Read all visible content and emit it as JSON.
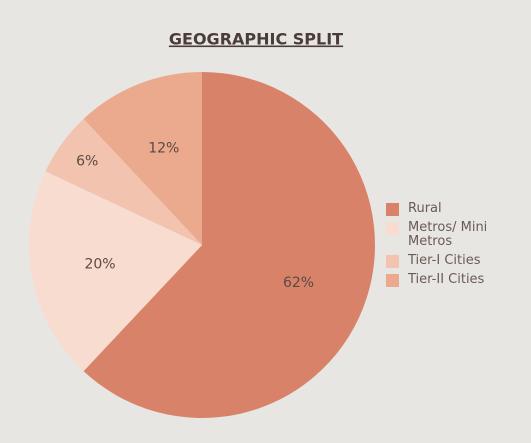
{
  "chart_data": {
    "type": "pie",
    "title": "GEOGRAPHIC SPLIT",
    "categories": [
      "Rural",
      "Metros/ Mini Metros",
      "Tier-I Cities",
      "Tier-II Cities"
    ],
    "values": [
      62,
      20,
      6,
      12
    ],
    "value_labels": [
      "62%",
      "20%",
      "6%",
      "12%"
    ],
    "colors": [
      "#d9826a",
      "#f8dccf",
      "#f2c4b0",
      "#eba98e"
    ],
    "legend": "right"
  }
}
